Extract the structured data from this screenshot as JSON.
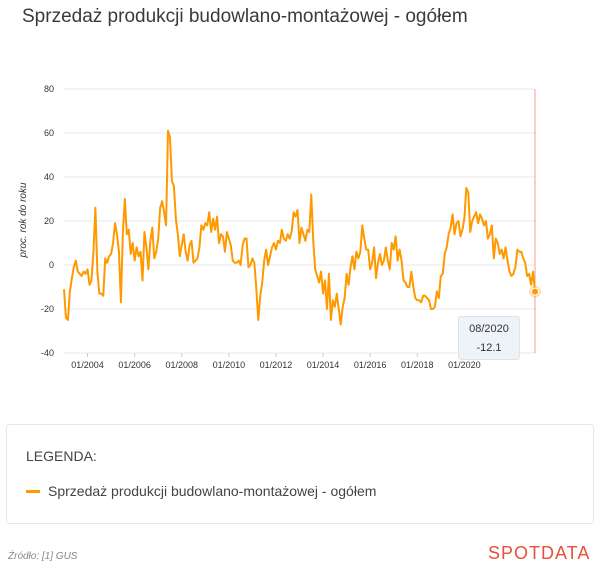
{
  "title": "Sprzedaż produkcji budowlano-montażowej - ogółem",
  "legend": {
    "heading": "LEGENDA:",
    "entry": "Sprzedaż produkcji budowlano-montażowej - ogółem"
  },
  "source": "Źródło: [1] GUS",
  "logo": "SPOTDATA",
  "tooltip": {
    "date": "08/2020",
    "value": "-12.1"
  },
  "colors": {
    "series": "#ff9900",
    "cursor": "#f3a08a",
    "grid": "#e8e8e8"
  },
  "chart_data": {
    "type": "line",
    "title": "Sprzedaż produkcji budowlano-montażowej - ogółem",
    "ylabel": "proc. rok do roku",
    "xlabel": "",
    "ylim": [
      -40,
      80
    ],
    "yticks": [
      -40,
      -20,
      0,
      20,
      40,
      60,
      80
    ],
    "xticks": [
      "01/2004",
      "01/2006",
      "01/2008",
      "01/2010",
      "01/2012",
      "01/2014",
      "01/2016",
      "01/2018",
      "01/2020"
    ],
    "grid": true,
    "legend_position": "bottom",
    "series": [
      {
        "name": "Sprzedaż produkcji budowlano-montażowej - ogółem",
        "start": "2003-01",
        "values": [
          -11,
          -24,
          -25,
          -12,
          -6,
          -1,
          2,
          -3,
          -4,
          -5,
          -3,
          -4,
          -2,
          -9,
          -7,
          6,
          26,
          -3,
          -13,
          -13,
          -14,
          3,
          1,
          4,
          5,
          10,
          19,
          14,
          6,
          -17,
          15,
          30,
          14,
          16,
          5,
          10,
          2,
          8,
          4,
          6,
          -7,
          15,
          8,
          -2,
          11,
          17,
          3,
          6,
          12,
          26,
          29,
          24,
          18,
          61,
          58,
          38,
          36,
          21,
          14,
          4,
          9,
          14,
          6,
          2,
          9,
          11,
          1,
          2,
          3,
          8,
          18,
          16,
          19,
          18,
          24,
          15,
          21,
          16,
          22,
          10,
          14,
          13,
          6,
          15,
          12,
          9,
          2,
          1,
          1,
          2,
          0,
          9,
          12,
          12,
          -1,
          0,
          3,
          1,
          -11,
          -25,
          -14,
          -8,
          2,
          7,
          0,
          4,
          8,
          10,
          7,
          11,
          10,
          16,
          12,
          11,
          14,
          12,
          15,
          24,
          22,
          25,
          10,
          17,
          14,
          11,
          16,
          15,
          32,
          11,
          -2,
          -5,
          -8,
          -3,
          -13,
          -7,
          -20,
          -4,
          -25,
          -16,
          -19,
          -13,
          -20,
          -27,
          -19,
          -15,
          -4,
          -9,
          -1,
          4,
          -2,
          6,
          3,
          6,
          18,
          12,
          7,
          7,
          -2,
          1,
          8,
          -6,
          1,
          5,
          0,
          2,
          8,
          2,
          -2,
          10,
          7,
          13,
          2,
          7,
          2,
          -7,
          -8,
          -10,
          -10,
          -3,
          -10,
          -15,
          -16,
          -16,
          -17,
          -14,
          -14,
          -15,
          -16,
          -20,
          -20,
          -19,
          -12,
          -15,
          -5,
          -4,
          5,
          8,
          14,
          17,
          23,
          14,
          19,
          20,
          13,
          16,
          21,
          35,
          33,
          15,
          20,
          22,
          24,
          19,
          23,
          21,
          18,
          20,
          12,
          14,
          18,
          3,
          12,
          10,
          5,
          7,
          3,
          8,
          2,
          -3,
          -5,
          -4,
          -1,
          7,
          6,
          6,
          3,
          1,
          -5,
          -4,
          -9,
          -3,
          -12.1
        ]
      }
    ]
  }
}
